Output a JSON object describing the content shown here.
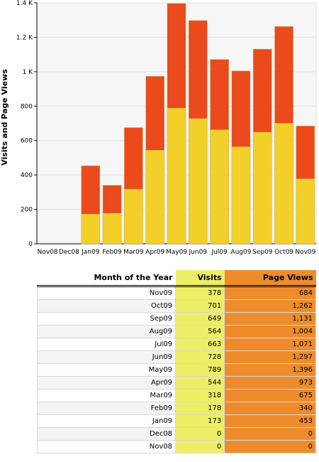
{
  "chart_data": {
    "type": "bar",
    "ylabel": "Visits and Page Views",
    "categories": [
      "Nov08",
      "Dec08",
      "Jan09",
      "Feb09",
      "Mar09",
      "Apr09",
      "May09",
      "Jun09",
      "Jul09",
      "Aug09",
      "Sep09",
      "Oct09",
      "Nov09"
    ],
    "series": [
      {
        "name": "Page Views",
        "color": "#ea4a1c",
        "values": [
          0,
          0,
          453,
          340,
          675,
          973,
          1396,
          1297,
          1071,
          1004,
          1131,
          1262,
          684
        ]
      },
      {
        "name": "Visits",
        "color": "#f3cf2a",
        "values": [
          0,
          0,
          173,
          178,
          318,
          544,
          789,
          728,
          663,
          564,
          649,
          701,
          378
        ]
      }
    ],
    "ylim": [
      0,
      1400
    ],
    "yticks": [
      0,
      200,
      400,
      600,
      800,
      {
        "value": 1000,
        "label": "1 K"
      },
      {
        "value": 1200,
        "label": "1.2 K"
      },
      {
        "value": 1400,
        "label": "1.4 K"
      }
    ],
    "grid": true
  },
  "table": {
    "header": [
      "Month of the Year",
      "Visits",
      "Page Views"
    ],
    "rows": [
      [
        "Nov09",
        "378",
        "684"
      ],
      [
        "Oct09",
        "701",
        "1,262"
      ],
      [
        "Sep09",
        "649",
        "1,131"
      ],
      [
        "Aug09",
        "564",
        "1,004"
      ],
      [
        "Jul09",
        "663",
        "1,071"
      ],
      [
        "Jun09",
        "728",
        "1,297"
      ],
      [
        "May09",
        "789",
        "1,396"
      ],
      [
        "Apr09",
        "544",
        "973"
      ],
      [
        "Mar09",
        "318",
        "675"
      ],
      [
        "Feb09",
        "178",
        "340"
      ],
      [
        "Jan09",
        "173",
        "453"
      ],
      [
        "Dec08",
        "0",
        "0"
      ],
      [
        "Nov08",
        "0",
        "0"
      ]
    ]
  }
}
